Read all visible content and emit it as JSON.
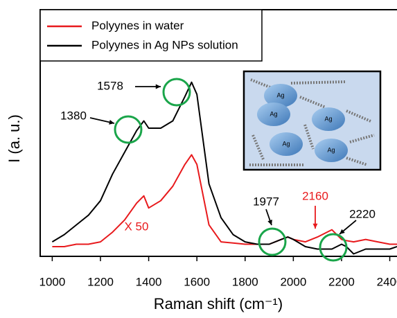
{
  "chart_data": {
    "type": "line",
    "x_label": "Raman shift (cm⁻¹)",
    "y_label": "I (a. u.)",
    "x": [
      1000,
      1050,
      1100,
      1150,
      1200,
      1250,
      1300,
      1350,
      1380,
      1400,
      1450,
      1500,
      1550,
      1578,
      1600,
      1650,
      1700,
      1750,
      1800,
      1850,
      1900,
      1950,
      1977,
      2000,
      2050,
      2100,
      2160,
      2200,
      2220,
      2250,
      2300,
      2350,
      2400,
      2430
    ],
    "series": [
      {
        "name": "Polyynes in water",
        "color": "#e8191c",
        "values": [
          0.2,
          0.2,
          0.3,
          0.3,
          0.4,
          0.8,
          1.3,
          2.0,
          2.3,
          1.8,
          2.1,
          2.7,
          3.6,
          4.0,
          3.6,
          1.1,
          0.4,
          0.35,
          0.3,
          0.3,
          0.3,
          0.5,
          0.6,
          0.5,
          0.4,
          0.6,
          0.9,
          0.5,
          0.45,
          0.4,
          0.5,
          0.4,
          0.3,
          0.3
        ]
      },
      {
        "name": "Polyynes in Ag NPs solution",
        "color": "#000000",
        "values": [
          0.4,
          0.7,
          1.1,
          1.5,
          2.1,
          3.2,
          4.1,
          5.0,
          5.4,
          5.1,
          5.1,
          5.4,
          6.4,
          7.0,
          6.5,
          2.8,
          1.4,
          0.7,
          0.4,
          0.3,
          0.3,
          0.5,
          0.6,
          0.5,
          0.2,
          0.1,
          0.1,
          0.3,
          0.2,
          -0.1,
          0.1,
          0.1,
          0.1,
          0.2
        ]
      }
    ],
    "xlim": [
      950,
      2430
    ],
    "xticks": [
      1000,
      1200,
      1400,
      1600,
      1800,
      2000,
      2200,
      2400
    ],
    "ylim": [
      -0.2,
      10
    ],
    "legend": "top-left",
    "annotations": [
      {
        "text": "1578"
      },
      {
        "text": "1380"
      },
      {
        "text": "1977"
      },
      {
        "text": "2160",
        "color": "#e8191c"
      },
      {
        "text": "2220"
      },
      {
        "text": "X 50",
        "color": "#e8191c"
      }
    ],
    "inset_labels": [
      "Ag",
      "Ag",
      "Ag",
      "Ag",
      "Ag"
    ]
  }
}
